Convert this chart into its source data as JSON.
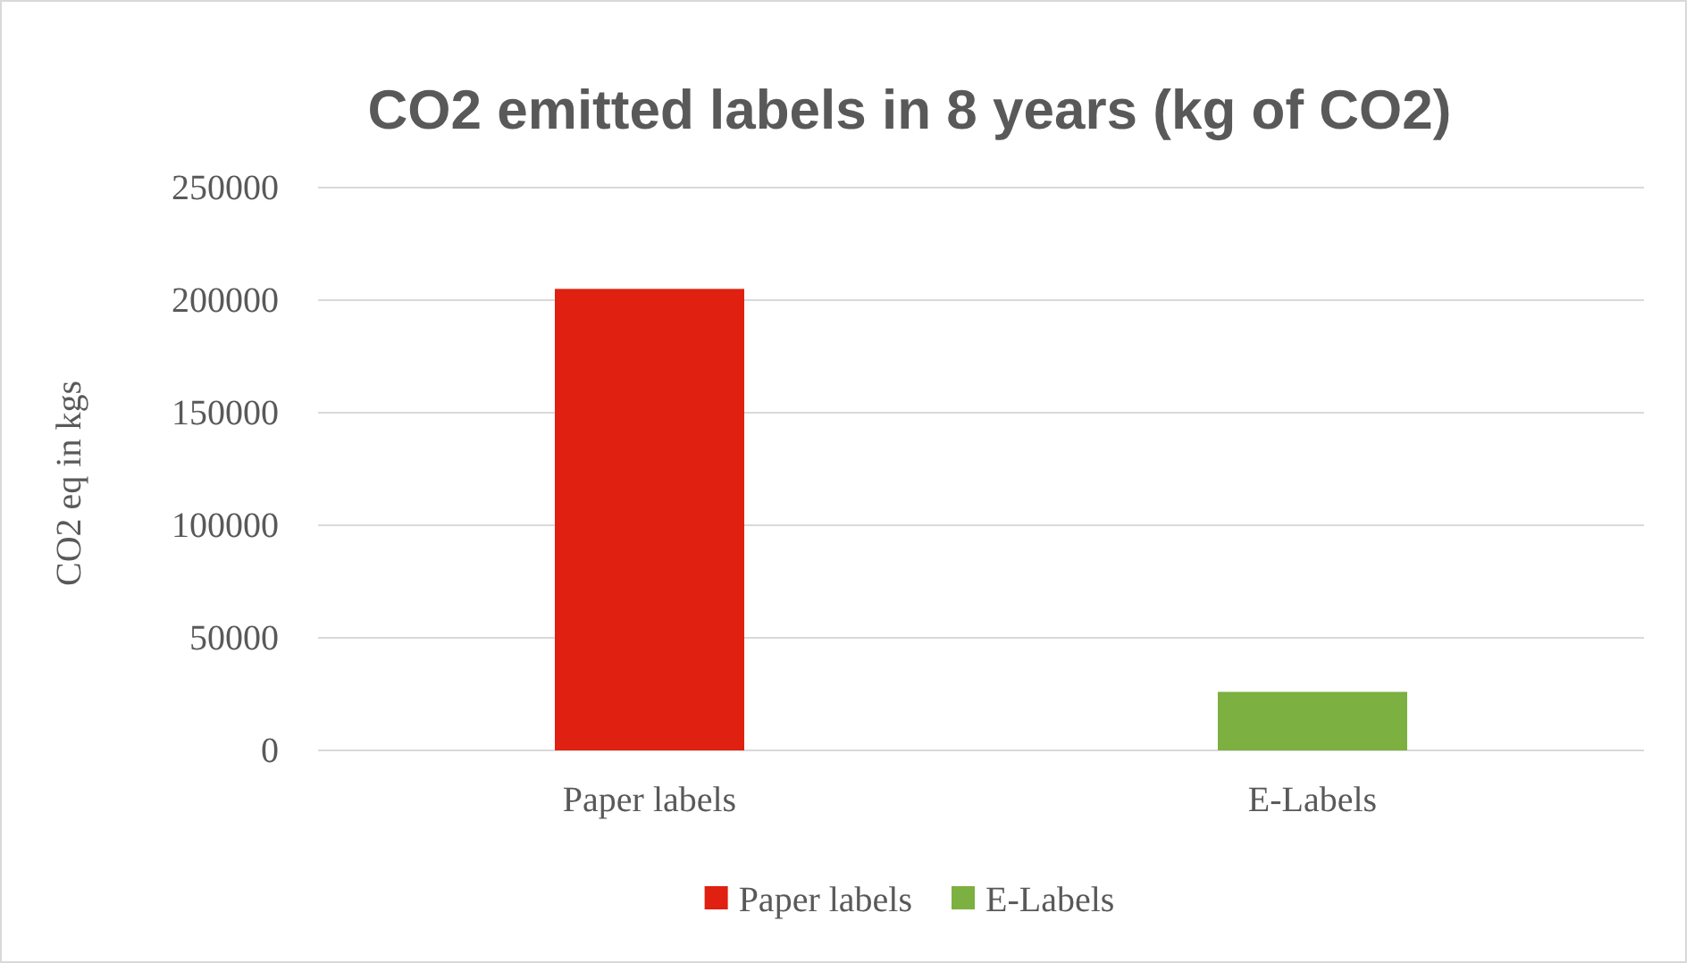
{
  "chart_data": {
    "type": "bar",
    "title": "CO2 emitted labels in 8 years (kg of CO2)",
    "ylabel": "CO2 eq in kgs",
    "categories": [
      "Paper labels",
      "E-Labels"
    ],
    "series": [
      {
        "name": "Paper labels",
        "color": "#e02010",
        "values": [
          205000,
          null
        ]
      },
      {
        "name": "E-Labels",
        "color": "#7cb040",
        "values": [
          null,
          26000
        ]
      }
    ],
    "ylim": [
      0,
      250000
    ],
    "yticks": [
      0,
      50000,
      100000,
      150000,
      200000,
      250000
    ],
    "grid": "y",
    "legend": "bottom"
  }
}
